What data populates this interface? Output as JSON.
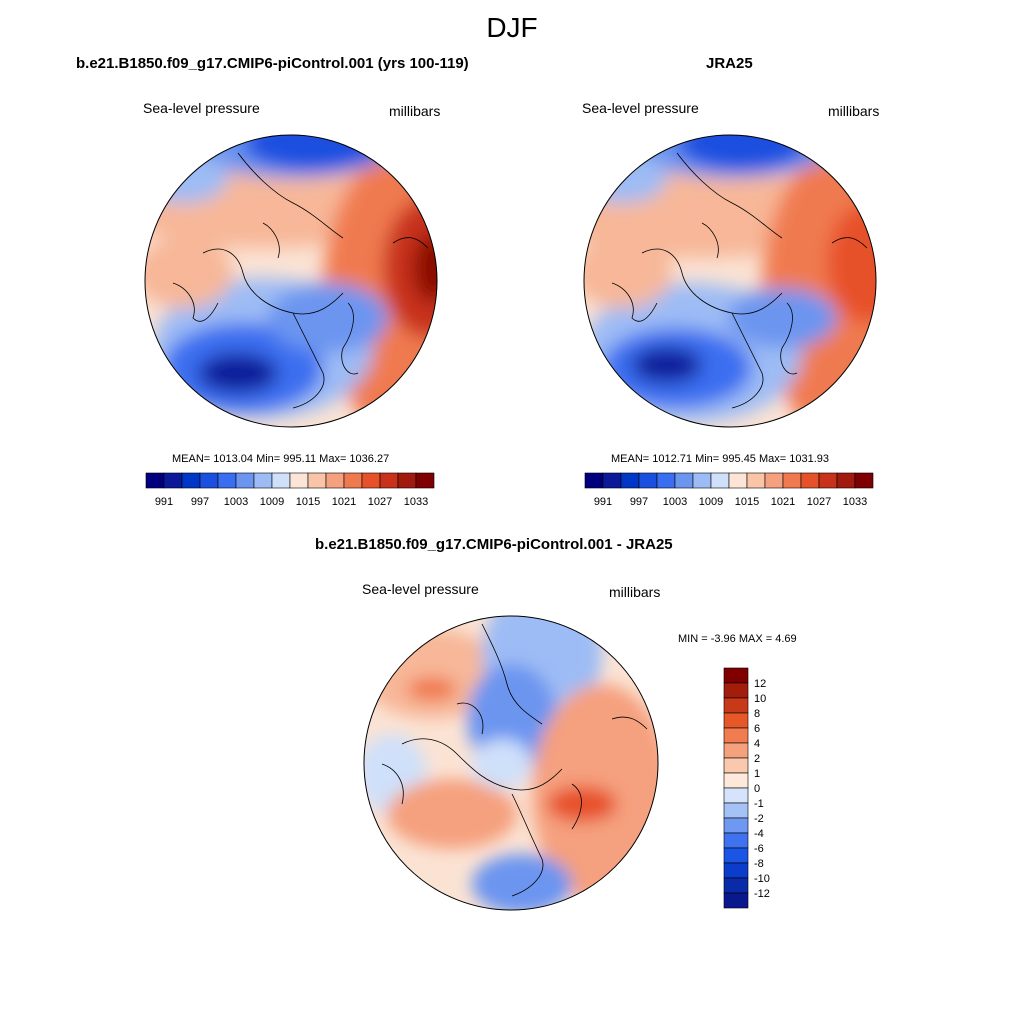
{
  "main_title": "DJF",
  "palette_abs": [
    "#00007f",
    "#0c1a9a",
    "#0037c6",
    "#1a4fe0",
    "#3a6ef0",
    "#6c95f0",
    "#9dbcf5",
    "#cfe0fa",
    "#fce4d6",
    "#f9c4a8",
    "#f5a07e",
    "#f07a50",
    "#e7512a",
    "#c8321a",
    "#a11a0e",
    "#7f0000"
  ],
  "palette_diff": [
    "#0a1890",
    "#0a2aa8",
    "#0b3ccc",
    "#1a55e6",
    "#3f72ee",
    "#6e98f2",
    "#a5c2f6",
    "#d5e4fb",
    "#fde8da",
    "#fac9ad",
    "#f5a17d",
    "#f07c50",
    "#e65828",
    "#c8391a",
    "#a31d0d",
    "#800000"
  ],
  "panels": {
    "left": {
      "title": "b.e21.B1850.f09_g17.CMIP6-piControl.001 (yrs 100-119)",
      "variable": "Sea-level pressure",
      "units": "millibars",
      "stats": "MEAN= 1013.04  Min= 995.11  Max= 1036.27",
      "colorbar_labels": [
        "991",
        "997",
        "1003",
        "1009",
        "1015",
        "1021",
        "1027",
        "1033"
      ]
    },
    "right": {
      "title": "JRA25",
      "variable": "Sea-level pressure",
      "units": "millibars",
      "stats": "MEAN= 1012.71  Min= 995.45  Max= 1031.93",
      "colorbar_labels": [
        "991",
        "997",
        "1003",
        "1009",
        "1015",
        "1021",
        "1027",
        "1033"
      ]
    },
    "diff": {
      "title": "b.e21.B1850.f09_g17.CMIP6-piControl.001 - JRA25",
      "variable": "Sea-level pressure",
      "units": "millibars",
      "stats": "MIN =  -3.96 MAX =   4.69",
      "colorbar_labels": [
        "12",
        "10",
        "8",
        "6",
        "4",
        "2",
        "1",
        "0",
        "-1",
        "-2",
        "-4",
        "-6",
        "-8",
        "-10",
        "-12"
      ]
    }
  }
}
